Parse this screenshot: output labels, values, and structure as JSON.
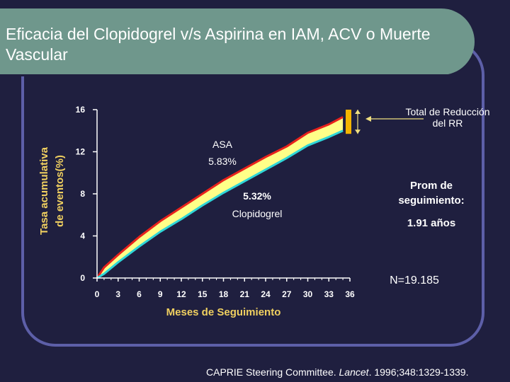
{
  "slide": {
    "title": "Eficacia del Clopidogrel v/s Aspirina en IAM, ACV o Muerte Vascular",
    "citation": {
      "before": "CAPRIE Steering Committee. ",
      "journal": "Lancet",
      "after": ". 1996;348:1329-1339."
    },
    "follow_up_label": "Prom de seguimiento:",
    "follow_up_value": "1.91 años",
    "sample_size": "N=19.185",
    "rrr_label": "Total de Reducción del RR"
  },
  "colors": {
    "background": "#1f1f3f",
    "title_bar": "#6f978c",
    "frame": "#5d5fa8",
    "asa_line": "#e8221c",
    "clopidogrel_line": "#2fd6d8",
    "band_fill": "#ffff88",
    "axis_label": "#f0d060",
    "rrr_bar": "#f4b400"
  },
  "chart_data": {
    "type": "line",
    "xlabel": "Meses de Seguimiento",
    "ylabel": "Tasa acumulativa de eventos(%)",
    "x_ticks": [
      "0",
      "3",
      "6",
      "9",
      "12",
      "15",
      "18",
      "21",
      "24",
      "27",
      "30",
      "33",
      "36"
    ],
    "y_ticks": [
      "0",
      "4",
      "8",
      "12",
      "16"
    ],
    "xlim": [
      0,
      36
    ],
    "ylim": [
      0,
      16
    ],
    "x": [
      0,
      1,
      3,
      6,
      9,
      12,
      15,
      18,
      21,
      24,
      27,
      30,
      33,
      35
    ],
    "series": [
      {
        "name": "ASA",
        "rate_label": "5.83%",
        "values": [
          0,
          1.0,
          2.2,
          3.9,
          5.4,
          6.7,
          8.0,
          9.3,
          10.4,
          11.5,
          12.5,
          13.8,
          14.6,
          15.3
        ]
      },
      {
        "name": "Clopidogrel",
        "rate_label": "5.32%",
        "values": [
          0,
          0.4,
          1.5,
          3.0,
          4.4,
          5.6,
          6.9,
          8.1,
          9.2,
          10.3,
          11.4,
          12.6,
          13.4,
          14.0
        ]
      }
    ]
  }
}
